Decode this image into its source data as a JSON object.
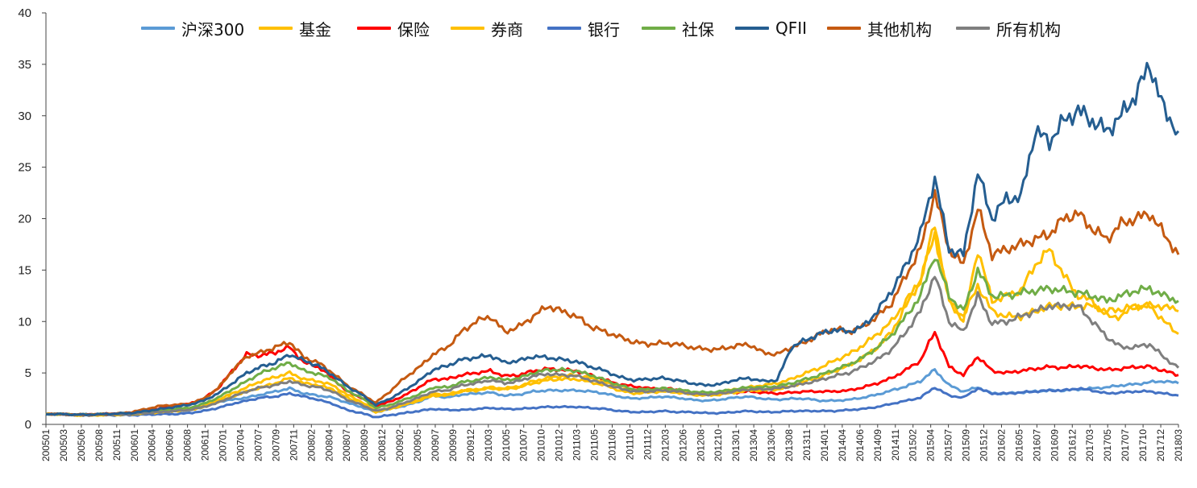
{
  "chart_data": {
    "type": "line",
    "title": "",
    "xlabel": "",
    "ylabel": "",
    "ylim": [
      0,
      40
    ],
    "yticks": [
      "0",
      "5",
      "10",
      "15",
      "20",
      "25",
      "30",
      "35",
      "40"
    ],
    "x_tick_labels": [
      "200501",
      "200503",
      "200506",
      "200508",
      "200511",
      "200601",
      "200604",
      "200606",
      "200608",
      "200611",
      "200701",
      "200704",
      "200707",
      "200709",
      "200711",
      "200802",
      "200804",
      "200807",
      "200809",
      "200812",
      "200902",
      "200905",
      "200907",
      "200909",
      "200912",
      "201003",
      "201005",
      "201007",
      "201010",
      "201012",
      "201103",
      "201105",
      "201108",
      "201110",
      "201112",
      "201203",
      "201206",
      "201208",
      "201210",
      "201301",
      "201304",
      "201306",
      "201308",
      "201311",
      "201401",
      "201404",
      "201406",
      "201409",
      "201411",
      "201502",
      "201504",
      "201507",
      "201509",
      "201512",
      "201602",
      "201605",
      "201607",
      "201609",
      "201612",
      "201703",
      "201705",
      "201707",
      "201710",
      "201712",
      "201803"
    ],
    "months": [
      "200501",
      "200503",
      "200505",
      "200507",
      "200509",
      "200511",
      "200601",
      "200603",
      "200605",
      "200607",
      "200609",
      "200611",
      "200701",
      "200703",
      "200705",
      "200707",
      "200709",
      "200711",
      "200801",
      "200803",
      "200805",
      "200807",
      "200809",
      "200811",
      "200901",
      "200903",
      "200905",
      "200907",
      "200909",
      "200911",
      "201001",
      "201003",
      "201005",
      "201007",
      "201009",
      "201011",
      "201101",
      "201103",
      "201105",
      "201107",
      "201109",
      "201111",
      "201201",
      "201203",
      "201205",
      "201207",
      "201209",
      "201211",
      "201301",
      "201303",
      "201305",
      "201307",
      "201309",
      "201311",
      "201401",
      "201403",
      "201405",
      "201407",
      "201409",
      "201411",
      "201501",
      "201503",
      "201505",
      "201507",
      "201509",
      "201511",
      "201601",
      "201603",
      "201605",
      "201607",
      "201609",
      "201611",
      "201701",
      "201703",
      "201705",
      "201707",
      "201709",
      "201711",
      "201801",
      "201803"
    ],
    "series": [
      {
        "name": "沪深300",
        "color": "#5B9BD5",
        "values": [
          1.0,
          1.0,
          0.9,
          0.9,
          0.95,
          0.95,
          1.0,
          1.1,
          1.3,
          1.3,
          1.4,
          1.7,
          2.2,
          2.4,
          2.6,
          2.9,
          3.2,
          3.5,
          3.0,
          2.8,
          2.6,
          2.1,
          1.7,
          1.2,
          1.5,
          1.8,
          2.2,
          2.8,
          2.6,
          2.9,
          3.0,
          3.1,
          2.8,
          2.9,
          3.2,
          3.3,
          3.3,
          3.3,
          3.2,
          3.0,
          2.7,
          2.5,
          2.6,
          2.7,
          2.6,
          2.4,
          2.3,
          2.4,
          2.6,
          2.7,
          2.5,
          2.4,
          2.5,
          2.5,
          2.3,
          2.3,
          2.4,
          2.6,
          2.9,
          3.3,
          3.7,
          4.2,
          5.3,
          3.8,
          3.2,
          3.6,
          3.0,
          3.0,
          3.1,
          3.2,
          3.3,
          3.3,
          3.4,
          3.5,
          3.6,
          3.8,
          3.9,
          4.1,
          4.2,
          4.0
        ]
      },
      {
        "name": "基金",
        "color": "#FFC000",
        "values": [
          1.0,
          1.0,
          0.9,
          0.9,
          0.9,
          0.95,
          1.0,
          1.1,
          1.3,
          1.4,
          1.5,
          1.8,
          2.4,
          3.0,
          3.6,
          4.2,
          4.6,
          5.0,
          4.4,
          4.2,
          3.8,
          2.9,
          2.2,
          1.3,
          1.6,
          2.0,
          2.4,
          3.0,
          2.9,
          3.3,
          3.4,
          3.6,
          3.5,
          3.7,
          4.2,
          4.5,
          4.7,
          4.8,
          4.5,
          4.1,
          3.6,
          3.2,
          3.3,
          3.4,
          3.3,
          3.1,
          3.0,
          3.1,
          3.4,
          3.6,
          3.8,
          4.0,
          4.4,
          5.0,
          5.5,
          6.2,
          6.8,
          7.7,
          8.8,
          10.0,
          12.0,
          14.0,
          19.5,
          12.0,
          10.5,
          13.5,
          11.0,
          10.5,
          10.5,
          11.0,
          11.5,
          11.5,
          11.5,
          11.5,
          11.0,
          11.2,
          11.5,
          11.5,
          11.5,
          11.0
        ]
      },
      {
        "name": "保险",
        "color": "#FF0000",
        "values": [
          1.0,
          1.0,
          0.95,
          0.95,
          1.0,
          1.05,
          1.1,
          1.3,
          1.6,
          1.8,
          2.0,
          2.5,
          3.5,
          5.2,
          6.8,
          6.7,
          7.0,
          7.5,
          6.0,
          5.6,
          4.5,
          3.2,
          2.6,
          1.8,
          2.2,
          2.8,
          3.6,
          4.4,
          4.4,
          4.8,
          5.0,
          5.2,
          4.7,
          4.8,
          5.2,
          5.4,
          5.3,
          5.2,
          4.8,
          4.3,
          3.9,
          3.7,
          3.5,
          3.5,
          3.4,
          3.1,
          3.0,
          3.0,
          3.1,
          3.2,
          3.1,
          3.0,
          3.1,
          3.2,
          3.2,
          3.2,
          3.3,
          3.6,
          4.0,
          4.5,
          5.3,
          6.2,
          9.0,
          5.6,
          4.8,
          6.6,
          5.2,
          5.0,
          5.2,
          5.4,
          5.6,
          5.5,
          5.7,
          5.5,
          5.3,
          5.4,
          5.6,
          5.6,
          5.2,
          4.8
        ]
      },
      {
        "name": "券商",
        "color": "#FFC000",
        "values": [
          1.0,
          1.0,
          0.9,
          0.9,
          0.95,
          0.95,
          1.0,
          1.1,
          1.2,
          1.3,
          1.4,
          1.7,
          2.2,
          2.7,
          3.2,
          3.6,
          4.0,
          4.5,
          4.0,
          3.8,
          3.4,
          2.6,
          2.0,
          1.2,
          1.5,
          1.9,
          2.3,
          2.8,
          2.8,
          3.2,
          3.3,
          3.5,
          3.4,
          3.6,
          4.0,
          4.3,
          4.4,
          4.4,
          4.1,
          3.8,
          3.3,
          3.0,
          3.1,
          3.2,
          3.1,
          2.9,
          2.8,
          2.9,
          3.1,
          3.3,
          3.3,
          3.4,
          3.7,
          4.2,
          4.6,
          5.2,
          5.7,
          6.5,
          7.5,
          9.0,
          11.5,
          14.0,
          18.5,
          12.0,
          10.0,
          17.0,
          12.0,
          12.5,
          13.0,
          15.5,
          17.0,
          14.5,
          12.5,
          12.0,
          10.5,
          10.5,
          11.5,
          11.5,
          10.0,
          8.8
        ]
      },
      {
        "name": "银行",
        "color": "#4472C4",
        "values": [
          1.0,
          1.0,
          0.95,
          0.95,
          0.9,
          0.9,
          0.9,
          0.95,
          1.0,
          1.0,
          1.1,
          1.3,
          1.6,
          2.0,
          2.3,
          2.6,
          2.7,
          3.0,
          2.7,
          2.4,
          2.0,
          1.4,
          1.1,
          0.7,
          0.9,
          1.1,
          1.3,
          1.5,
          1.4,
          1.4,
          1.5,
          1.6,
          1.5,
          1.5,
          1.6,
          1.7,
          1.7,
          1.7,
          1.6,
          1.5,
          1.3,
          1.2,
          1.2,
          1.3,
          1.2,
          1.2,
          1.1,
          1.1,
          1.2,
          1.3,
          1.2,
          1.2,
          1.3,
          1.3,
          1.3,
          1.3,
          1.4,
          1.5,
          1.7,
          2.0,
          2.3,
          2.6,
          3.6,
          2.8,
          2.6,
          3.5,
          3.0,
          3.0,
          3.1,
          3.2,
          3.3,
          3.3,
          3.5,
          3.3,
          3.0,
          3.1,
          3.2,
          3.2,
          3.0,
          2.8
        ]
      },
      {
        "name": "社保",
        "color": "#70AD47",
        "values": [
          1.0,
          1.0,
          0.95,
          0.95,
          1.0,
          1.0,
          1.1,
          1.2,
          1.4,
          1.5,
          1.6,
          2.0,
          2.6,
          3.4,
          4.2,
          5.0,
          5.5,
          6.0,
          5.2,
          4.9,
          4.4,
          3.3,
          2.6,
          1.6,
          1.9,
          2.4,
          2.9,
          3.6,
          3.6,
          4.1,
          4.3,
          4.6,
          4.3,
          4.5,
          5.0,
          5.3,
          5.3,
          5.2,
          4.8,
          4.3,
          3.8,
          3.4,
          3.4,
          3.5,
          3.4,
          3.2,
          3.1,
          3.2,
          3.4,
          3.6,
          3.6,
          3.7,
          4.0,
          4.4,
          4.8,
          5.3,
          5.8,
          6.5,
          7.5,
          8.7,
          10.5,
          12.5,
          16.5,
          12.5,
          11.0,
          15.0,
          12.5,
          12.5,
          12.8,
          13.0,
          13.2,
          13.0,
          12.8,
          12.5,
          12.0,
          12.5,
          13.0,
          13.2,
          12.5,
          12.0
        ]
      },
      {
        "name": "QFII",
        "color": "#255E91",
        "values": [
          1.0,
          1.0,
          0.95,
          0.95,
          1.0,
          1.05,
          1.1,
          1.3,
          1.5,
          1.7,
          1.9,
          2.3,
          3.0,
          4.0,
          5.0,
          5.6,
          6.0,
          6.8,
          6.2,
          5.7,
          4.8,
          3.7,
          2.9,
          1.9,
          2.5,
          3.3,
          4.2,
          5.3,
          5.7,
          6.3,
          6.5,
          6.7,
          6.0,
          6.2,
          6.6,
          6.5,
          6.3,
          6.1,
          5.6,
          5.2,
          4.6,
          4.3,
          4.4,
          4.5,
          4.3,
          4.0,
          3.8,
          3.9,
          4.3,
          4.5,
          4.2,
          4.3,
          7.5,
          8.2,
          8.8,
          9.2,
          9.0,
          9.5,
          11.0,
          13.0,
          15.5,
          18.5,
          24.0,
          17.0,
          16.5,
          24.5,
          20.0,
          22.0,
          22.0,
          28.5,
          27.5,
          29.5,
          30.5,
          29.5,
          28.5,
          30.0,
          32.0,
          35.0,
          30.5,
          28.5
        ]
      },
      {
        "name": "其他机构",
        "color": "#C55A11",
        "values": [
          1.0,
          1.0,
          0.95,
          0.95,
          1.0,
          1.05,
          1.2,
          1.5,
          1.8,
          1.9,
          2.0,
          2.5,
          3.5,
          5.2,
          6.6,
          7.0,
          7.5,
          8.0,
          6.5,
          6.0,
          5.0,
          3.8,
          3.0,
          2.1,
          3.2,
          4.5,
          5.5,
          6.8,
          7.5,
          9.0,
          10.0,
          10.5,
          9.0,
          9.5,
          10.5,
          11.5,
          11.0,
          10.5,
          9.5,
          9.0,
          8.5,
          8.0,
          7.8,
          7.9,
          7.8,
          7.5,
          7.3,
          7.3,
          7.6,
          7.8,
          7.0,
          6.8,
          7.5,
          8.0,
          8.8,
          9.3,
          9.0,
          9.5,
          10.5,
          11.8,
          14.5,
          17.0,
          22.5,
          17.0,
          15.5,
          21.0,
          16.5,
          17.0,
          17.5,
          18.0,
          18.5,
          20.0,
          20.5,
          19.0,
          18.0,
          19.5,
          20.0,
          20.5,
          18.5,
          16.5
        ]
      },
      {
        "name": "所有机构",
        "color": "#7F7F7F",
        "values": [
          1.0,
          1.0,
          0.9,
          0.9,
          0.95,
          0.95,
          1.0,
          1.1,
          1.2,
          1.3,
          1.4,
          1.7,
          2.1,
          2.7,
          3.2,
          3.6,
          3.8,
          4.2,
          3.8,
          3.6,
          3.2,
          2.4,
          1.9,
          1.3,
          1.6,
          2.1,
          2.6,
          3.2,
          3.3,
          3.8,
          4.0,
          4.3,
          4.0,
          4.2,
          4.7,
          4.9,
          4.8,
          4.7,
          4.3,
          3.9,
          3.5,
          3.2,
          3.2,
          3.3,
          3.2,
          3.0,
          2.9,
          3.0,
          3.2,
          3.4,
          3.4,
          3.5,
          3.7,
          4.0,
          4.3,
          4.7,
          5.0,
          5.6,
          6.3,
          7.3,
          9.0,
          11.0,
          14.5,
          10.0,
          9.0,
          12.5,
          9.8,
          10.0,
          10.5,
          11.0,
          11.5,
          11.5,
          11.5,
          10.0,
          8.5,
          7.5,
          7.5,
          7.8,
          6.5,
          5.5
        ]
      }
    ]
  }
}
